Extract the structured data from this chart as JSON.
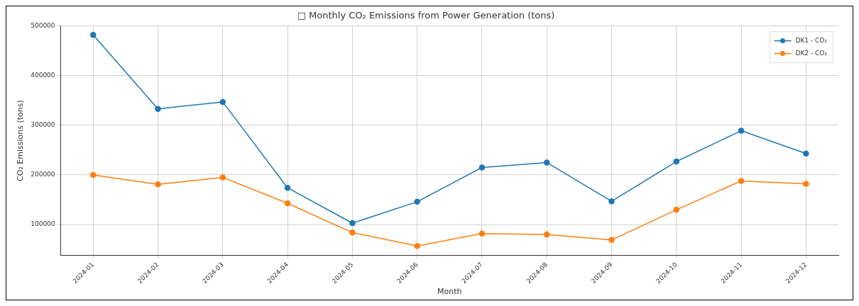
{
  "chart_data": {
    "type": "line",
    "title": "□ Monthly CO₂ Emissions from Power Generation (tons)",
    "xlabel": "Month",
    "ylabel": "CO₂ Emissions (tons)",
    "categories": [
      "2024-01",
      "2024-02",
      "2024-03",
      "2024-04",
      "2024-05",
      "2024-06",
      "2024-07",
      "2024-08",
      "2024-09",
      "2024-10",
      "2024-11",
      "2024-12"
    ],
    "series": [
      {
        "name": "DK1 - CO₂",
        "color": "#1f77b4",
        "values": [
          482000,
          333000,
          347000,
          174000,
          103000,
          146000,
          215000,
          225000,
          147000,
          227000,
          289000,
          243000
        ]
      },
      {
        "name": "DK2 - CO₂",
        "color": "#ff7f0e",
        "values": [
          200000,
          181000,
          195000,
          143000,
          84000,
          57000,
          82000,
          80000,
          69000,
          130000,
          188000,
          182000
        ]
      }
    ],
    "ylim": [
      38000,
      500000
    ],
    "yticks": [
      100000,
      200000,
      300000,
      400000,
      500000
    ],
    "grid": true,
    "legend": "top right",
    "marker": "circle",
    "line_style": "solid"
  }
}
